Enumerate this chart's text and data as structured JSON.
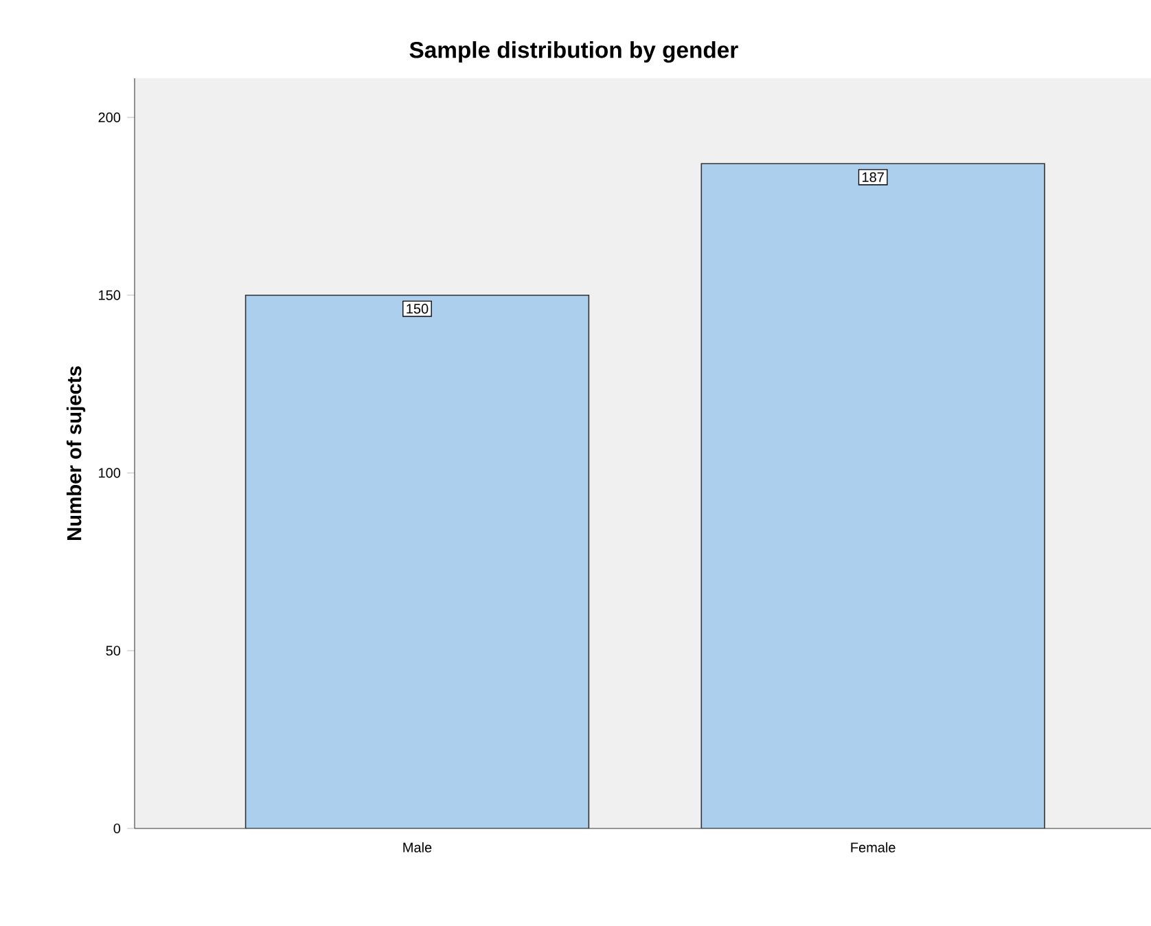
{
  "chart_data": {
    "type": "bar",
    "title": "Sample distribution by gender",
    "ylabel": "Number of sujects",
    "categories": [
      "Male",
      "Female"
    ],
    "values": [
      150,
      187
    ],
    "color": "#accfee",
    "ylim": [
      0,
      211
    ],
    "yticks": [
      0,
      50,
      100,
      150,
      200
    ],
    "data_labels": true
  }
}
